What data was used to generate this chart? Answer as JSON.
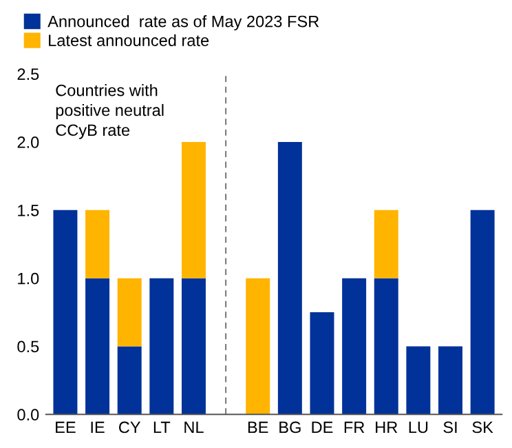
{
  "chart_data": {
    "type": "bar",
    "stacked": true,
    "categories": [
      "EE",
      "IE",
      "CY",
      "LT",
      "NL",
      null,
      "BE",
      "BG",
      "DE",
      "FR",
      "HR",
      "LU",
      "SI",
      "SK"
    ],
    "series": [
      {
        "name": "Announced  rate as of May 2023 FSR",
        "color": "#003299",
        "values": [
          1.5,
          1.0,
          0.5,
          1.0,
          1.0,
          null,
          0,
          2.0,
          0.75,
          1.0,
          1.0,
          0.5,
          0.5,
          1.5
        ]
      },
      {
        "name": "Latest announced rate",
        "color": "#ffb400",
        "values": [
          0,
          0.5,
          0.5,
          0,
          1.0,
          null,
          1.0,
          0,
          0,
          0,
          0.5,
          0,
          0,
          0
        ]
      }
    ],
    "ylim": [
      0,
      2.5
    ],
    "yticks": [
      {
        "value": 0,
        "label": "0.0"
      },
      {
        "value": 0.5,
        "label": "0.5"
      },
      {
        "value": 1.0,
        "label": "1.0"
      },
      {
        "value": 1.5,
        "label": "1.5"
      },
      {
        "value": 2.0,
        "label": "2.0"
      },
      {
        "value": 2.5,
        "label": "2.5"
      }
    ],
    "ref_lines": [
      {
        "axis": "x",
        "color": "#808080",
        "line_style": "dashed"
      }
    ],
    "annotations": [
      "Countries with\npositive neutral\nCCyB rate"
    ],
    "legend": "top left"
  }
}
